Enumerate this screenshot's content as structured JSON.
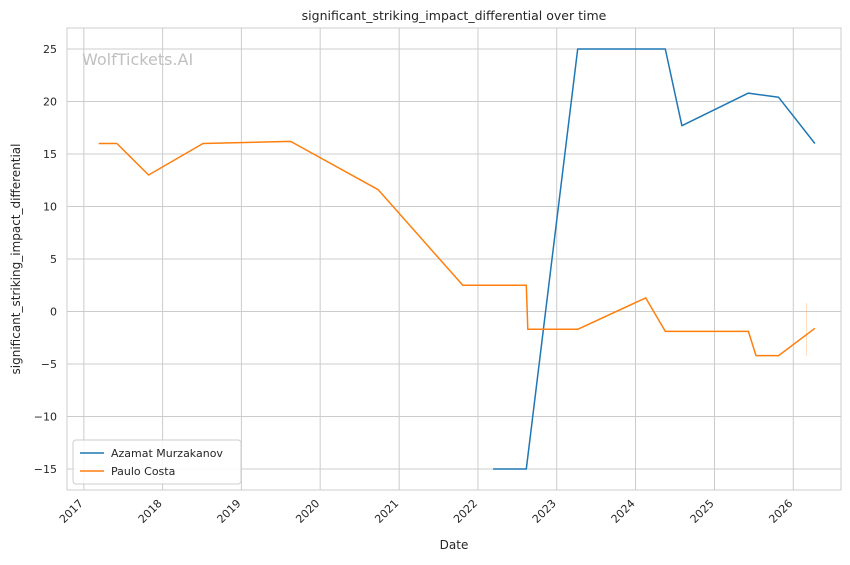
{
  "chart_data": {
    "type": "line",
    "title": "significant_striking_impact_differential over time",
    "xlabel": "Date",
    "ylabel": "significant_striking_impact_differential",
    "xlim": [
      "2016-10-15",
      "2026-08-10"
    ],
    "ylim": [
      -17,
      27
    ],
    "x_ticks": [
      "2017",
      "2018",
      "2019",
      "2020",
      "2021",
      "2022",
      "2023",
      "2024",
      "2025",
      "2026"
    ],
    "y_ticks": [
      -15,
      -10,
      -5,
      0,
      5,
      10,
      15,
      20,
      25
    ],
    "y_tick_labels": [
      "−15",
      "−10",
      "−5",
      "0",
      "5",
      "10",
      "15",
      "20",
      "25"
    ],
    "grid": true,
    "legend_position": "lower-left",
    "watermark": "WolfTickets.AI",
    "series": [
      {
        "name": "Azamat Murzakanov",
        "color": "#1f77b4",
        "points": [
          [
            "2022-03-12",
            -15
          ],
          [
            "2022-08-13",
            -15
          ],
          [
            "2023-04-08",
            25
          ],
          [
            "2024-05-18",
            25
          ],
          [
            "2024-08-03",
            17.7
          ],
          [
            "2025-06-07",
            20.8
          ],
          [
            "2025-07-12",
            20.7
          ],
          [
            "2025-10-25",
            20.4
          ],
          [
            "2026-04-11",
            16
          ]
        ]
      },
      {
        "name": "Paulo Costa",
        "color": "#ff7f0e",
        "points": [
          [
            "2017-03-11",
            16
          ],
          [
            "2017-06-03",
            16
          ],
          [
            "2017-10-28",
            13
          ],
          [
            "2018-07-07",
            16
          ],
          [
            "2019-08-17",
            16.2
          ],
          [
            "2020-09-26",
            11.6
          ],
          [
            "2021-10-23",
            2.5
          ],
          [
            "2022-08-13",
            2.5
          ],
          [
            "2022-08-20",
            -1.7
          ],
          [
            "2023-04-08",
            -1.7
          ],
          [
            "2024-02-17",
            1.3
          ],
          [
            "2024-05-18",
            -1.9
          ],
          [
            "2025-06-07",
            -1.9
          ],
          [
            "2025-07-12",
            -4.2
          ],
          [
            "2025-10-25",
            -4.2
          ],
          [
            "2026-04-11",
            -1.6
          ]
        ]
      }
    ]
  }
}
